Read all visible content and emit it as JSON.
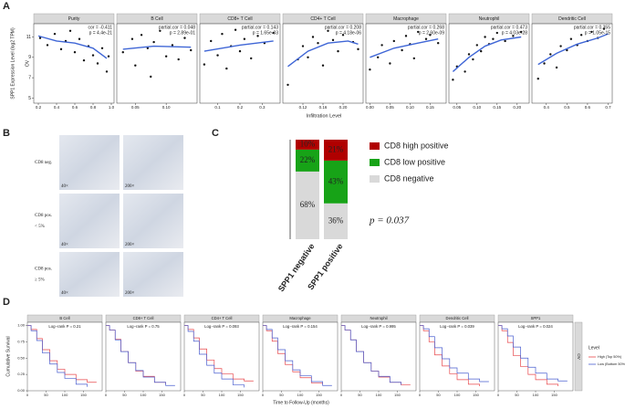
{
  "figure": {
    "letters": [
      "A",
      "B",
      "C",
      "D"
    ]
  },
  "panel_a": {
    "ylabel": "SPP1 Expression Level (log2 TPM)",
    "xlabel": "Infiltration Level",
    "row_label": "OV",
    "ylim": [
      4.5,
      12.3
    ],
    "yticks": [
      5,
      7,
      9,
      11
    ],
    "point_color": "#111111",
    "fit_color": "#3f66d6"
  },
  "panel_b": {
    "rows": [
      [
        "CD8 neg."
      ],
      [
        "CD8 pos.",
        "< 5%"
      ],
      [
        "CD8 pos.",
        "≥ 5%"
      ]
    ],
    "magnifications": [
      "40×",
      "200×"
    ]
  },
  "panel_d": {
    "ylabel": "Cumulative Survival",
    "xlabel": "Time to Follow-Up (months)",
    "row_label": "OV",
    "ylim": [
      0,
      1.05
    ],
    "yticks": [
      {
        "value": 0,
        "label": "0.00"
      },
      {
        "value": 0.25,
        "label": "0.25"
      },
      {
        "value": 0.5,
        "label": "0.50"
      },
      {
        "value": 0.75,
        "label": "0.75"
      },
      {
        "value": 1,
        "label": "1.00"
      }
    ],
    "xlim": [
      0,
      200
    ],
    "xticks": [
      0,
      50,
      100,
      150
    ],
    "legend_title": "Level",
    "legend": [
      {
        "name": "High (Top 50%)",
        "color": "#e8474b"
      },
      {
        "name": "Low (Bottom 50%)",
        "color": "#4a5fd0"
      }
    ]
  },
  "chart_data": [
    {
      "type": "scatter",
      "title": "Purity",
      "xlim": [
        0.15,
        1.03
      ],
      "xticks": [
        0.2,
        0.4,
        0.6,
        0.8,
        {
          "value": 1,
          "label": "1.0"
        }
      ],
      "annotations": [
        "cor = -0.411",
        "p = 4.4e-21"
      ],
      "x": [
        0.22,
        0.3,
        0.38,
        0.45,
        0.5,
        0.55,
        0.6,
        0.65,
        0.7,
        0.75,
        0.8,
        0.85,
        0.9,
        0.95,
        0.97
      ],
      "y": [
        10.9,
        10.2,
        11.3,
        9.8,
        10.6,
        11.6,
        9.5,
        10.8,
        8.7,
        10.1,
        9.2,
        8.4,
        9.9,
        7.6,
        9.1
      ],
      "fit": {
        "x": [
          0.2,
          0.4,
          0.6,
          0.8,
          0.95
        ],
        "y": [
          11.1,
          10.6,
          10.4,
          9.9,
          8.9
        ]
      }
    },
    {
      "type": "scatter",
      "title": "B Cell",
      "xlim": [
        0.02,
        0.15
      ],
      "xticks": [
        0.05,
        {
          "value": 0.1,
          "label": "0.10"
        }
      ],
      "annotations": [
        "partial.cor = 0.048",
        "p = 2.89e-01"
      ],
      "x": [
        0.03,
        0.045,
        0.05,
        0.06,
        0.07,
        0.075,
        0.08,
        0.09,
        0.1,
        0.11,
        0.12,
        0.13,
        0.14
      ],
      "y": [
        9.5,
        10.8,
        8.2,
        11.2,
        9.9,
        7.1,
        10.5,
        11.6,
        9.1,
        10.2,
        8.8,
        10.9,
        9.7
      ],
      "fit": {
        "x": [
          0.03,
          0.08,
          0.14
        ],
        "y": [
          9.8,
          10.1,
          10.0
        ]
      }
    },
    {
      "type": "scatter",
      "title": "CD8+ T Cell",
      "xlim": [
        0.02,
        0.38
      ],
      "xticks": [
        0.1,
        0.2,
        0.3
      ],
      "annotations": [
        "partial.cor = 0.143",
        "p = 1.65e-03"
      ],
      "x": [
        0.04,
        0.07,
        0.1,
        0.12,
        0.14,
        0.16,
        0.18,
        0.2,
        0.22,
        0.25,
        0.28,
        0.31,
        0.35
      ],
      "y": [
        8.3,
        10.6,
        9.2,
        11.3,
        7.9,
        10.1,
        11.7,
        9.6,
        10.8,
        8.9,
        11.1,
        10.4,
        11.4
      ],
      "fit": {
        "x": [
          0.04,
          0.2,
          0.35
        ],
        "y": [
          9.6,
          10.2,
          10.6
        ]
      }
    },
    {
      "type": "scatter",
      "title": "CD4+ T Cell",
      "xlim": [
        0.08,
        0.24
      ],
      "xticks": [
        0.12,
        0.16,
        {
          "value": 0.2,
          "label": "0.20"
        }
      ],
      "annotations": [
        "partial.cor = 0.208",
        "p = 4.18e-06"
      ],
      "x": [
        0.09,
        0.11,
        0.12,
        0.13,
        0.14,
        0.15,
        0.16,
        0.17,
        0.18,
        0.19,
        0.2,
        0.22,
        0.23
      ],
      "y": [
        6.3,
        8.8,
        10.1,
        9.0,
        11.0,
        10.4,
        8.2,
        11.6,
        10.7,
        9.6,
        11.2,
        10.5,
        9.8
      ],
      "fit": {
        "x": [
          0.09,
          0.13,
          0.17,
          0.21,
          0.23
        ],
        "y": [
          8.1,
          9.6,
          10.4,
          10.6,
          10.3
        ]
      }
    },
    {
      "type": "scatter",
      "title": "Macrophage",
      "xlim": [
        -0.01,
        0.19
      ],
      "xticks": [
        {
          "value": 0,
          "label": "0.00"
        },
        0.05,
        {
          "value": 0.1,
          "label": "0.10"
        },
        0.15
      ],
      "annotations": [
        "partial.cor = 0.268",
        "p = 2.60e-09"
      ],
      "x": [
        0.0,
        0.02,
        0.03,
        0.05,
        0.06,
        0.08,
        0.09,
        0.1,
        0.11,
        0.12,
        0.14,
        0.15,
        0.17
      ],
      "y": [
        7.8,
        9.0,
        10.2,
        8.4,
        10.6,
        9.7,
        11.1,
        10.3,
        8.9,
        11.5,
        10.8,
        11.2,
        10.4
      ],
      "fit": {
        "x": [
          0,
          0.06,
          0.12,
          0.17
        ],
        "y": [
          9.0,
          9.9,
          10.4,
          10.8
        ]
      }
    },
    {
      "type": "scatter",
      "title": "Neutrophil",
      "xlim": [
        0.03,
        0.23
      ],
      "xticks": [
        0.05,
        {
          "value": 0.1,
          "label": "0.10"
        },
        0.15,
        {
          "value": 0.2,
          "label": "0.20"
        }
      ],
      "annotations": [
        "partial.cor = 0.473",
        "p = 4.03e-28"
      ],
      "x": [
        0.04,
        0.05,
        0.07,
        0.08,
        0.09,
        0.1,
        0.11,
        0.12,
        0.13,
        0.14,
        0.15,
        0.17,
        0.19,
        0.21
      ],
      "y": [
        6.8,
        8.1,
        7.6,
        9.3,
        8.8,
        10.2,
        9.6,
        11.0,
        10.3,
        10.8,
        11.4,
        10.6,
        11.1,
        11.5
      ],
      "fit": {
        "x": [
          0.04,
          0.08,
          0.12,
          0.16,
          0.21
        ],
        "y": [
          7.6,
          9.0,
          10.1,
          10.7,
          11.0
        ]
      }
    },
    {
      "type": "scatter",
      "title": "Dendritic Cell",
      "xlim": [
        0.33,
        0.72
      ],
      "xticks": [
        0.4,
        0.5,
        0.6,
        0.7
      ],
      "annotations": [
        "partial.cor = 0.355",
        "p = 1.05e-15"
      ],
      "x": [
        0.36,
        0.39,
        0.42,
        0.45,
        0.47,
        0.5,
        0.52,
        0.55,
        0.57,
        0.6,
        0.62,
        0.65,
        0.68
      ],
      "y": [
        6.9,
        8.4,
        9.3,
        8.0,
        10.1,
        9.7,
        10.8,
        10.2,
        11.2,
        10.6,
        11.5,
        10.9,
        11.8
      ],
      "fit": {
        "x": [
          0.36,
          0.45,
          0.55,
          0.65,
          0.7
        ],
        "y": [
          8.3,
          9.4,
          10.3,
          10.9,
          11.3
        ]
      }
    },
    {
      "type": "stacked_bar",
      "categories": [
        "SPP1 negative",
        "SPP1 positive"
      ],
      "ylim": [
        0,
        100
      ],
      "annotation": "p = 0.037",
      "series": [
        {
          "name": "CD8 negative",
          "color": "#d9d9d9",
          "values": [
            68,
            36
          ],
          "value_labels": [
            "68%",
            "36%"
          ]
        },
        {
          "name": "CD8 low positive",
          "color": "#17a317",
          "values": [
            22,
            43
          ],
          "value_labels": [
            "22%",
            "43%"
          ]
        },
        {
          "name": "CD8 high positive",
          "color": "#b00000",
          "values": [
            10,
            21
          ],
          "value_labels": [
            "10%",
            "21%"
          ]
        }
      ]
    },
    {
      "type": "km",
      "title": "B Cell",
      "annotation": "Log−rank P = 0.21",
      "x": [
        0,
        10,
        25,
        40,
        60,
        80,
        100,
        130,
        160,
        185
      ],
      "series": [
        {
          "values": [
            1,
            0.94,
            0.8,
            0.63,
            0.46,
            0.33,
            0.25,
            0.17,
            0.13,
            0.13
          ]
        },
        {
          "values": [
            1,
            0.92,
            0.77,
            0.58,
            0.41,
            0.28,
            0.19,
            0.1,
            0.06,
            null
          ]
        }
      ]
    },
    {
      "type": "km",
      "title": "CD8+ T Cell",
      "annotation": "Log−rank P = 0.75",
      "x": [
        0,
        10,
        25,
        40,
        60,
        80,
        100,
        130,
        160,
        185
      ],
      "series": [
        {
          "values": [
            1,
            0.93,
            0.79,
            0.6,
            0.43,
            0.3,
            0.22,
            0.13,
            0.1,
            null
          ]
        },
        {
          "values": [
            1,
            0.93,
            0.78,
            0.6,
            0.43,
            0.31,
            0.21,
            0.13,
            0.08,
            0.08
          ]
        }
      ]
    },
    {
      "type": "km",
      "title": "CD4+ T Cell",
      "annotation": "Log−rank P = 0.093",
      "x": [
        0,
        10,
        25,
        40,
        60,
        80,
        100,
        130,
        160,
        185
      ],
      "series": [
        {
          "values": [
            1,
            0.94,
            0.81,
            0.64,
            0.47,
            0.34,
            0.26,
            0.18,
            0.15,
            0.15
          ]
        },
        {
          "values": [
            1,
            0.91,
            0.76,
            0.56,
            0.39,
            0.27,
            0.18,
            0.09,
            0.05,
            null
          ]
        }
      ]
    },
    {
      "type": "km",
      "title": "Macrophage",
      "annotation": "Log−rank P = 0.154",
      "x": [
        0,
        10,
        25,
        40,
        60,
        80,
        100,
        130,
        160,
        185
      ],
      "series": [
        {
          "values": [
            1,
            0.92,
            0.76,
            0.57,
            0.4,
            0.29,
            0.2,
            0.12,
            0.1,
            null
          ]
        },
        {
          "values": [
            1,
            0.94,
            0.81,
            0.63,
            0.46,
            0.32,
            0.23,
            0.14,
            0.08,
            0.08
          ]
        }
      ]
    },
    {
      "type": "km",
      "title": "Neutrophil",
      "annotation": "Log−rank P = 0.995",
      "x": [
        0,
        10,
        25,
        40,
        60,
        80,
        100,
        130,
        160,
        185
      ],
      "series": [
        {
          "values": [
            1,
            0.93,
            0.78,
            0.6,
            0.43,
            0.3,
            0.21,
            0.13,
            0.09,
            0.09
          ]
        },
        {
          "values": [
            1,
            0.93,
            0.78,
            0.6,
            0.43,
            0.3,
            0.22,
            0.13,
            0.09,
            null
          ]
        }
      ]
    },
    {
      "type": "km",
      "title": "Dendritic Cell",
      "annotation": "Log−rank P = 0.039",
      "x": [
        0,
        10,
        25,
        40,
        60,
        80,
        100,
        130,
        160,
        185
      ],
      "series": [
        {
          "values": [
            1,
            0.92,
            0.75,
            0.55,
            0.38,
            0.26,
            0.17,
            0.1,
            0.07,
            null
          ]
        },
        {
          "values": [
            1,
            0.95,
            0.83,
            0.66,
            0.49,
            0.35,
            0.27,
            0.18,
            0.14,
            0.14
          ]
        }
      ]
    },
    {
      "type": "km",
      "title": "SPP1",
      "annotation": "Log−rank P = 0.024",
      "x": [
        0,
        10,
        25,
        40,
        60,
        80,
        100,
        130,
        160,
        185
      ],
      "series": [
        {
          "values": [
            1,
            0.92,
            0.74,
            0.54,
            0.37,
            0.25,
            0.17,
            0.1,
            0.07,
            null
          ]
        },
        {
          "values": [
            1,
            0.95,
            0.84,
            0.67,
            0.5,
            0.36,
            0.27,
            0.18,
            0.15,
            0.15
          ]
        }
      ]
    }
  ]
}
